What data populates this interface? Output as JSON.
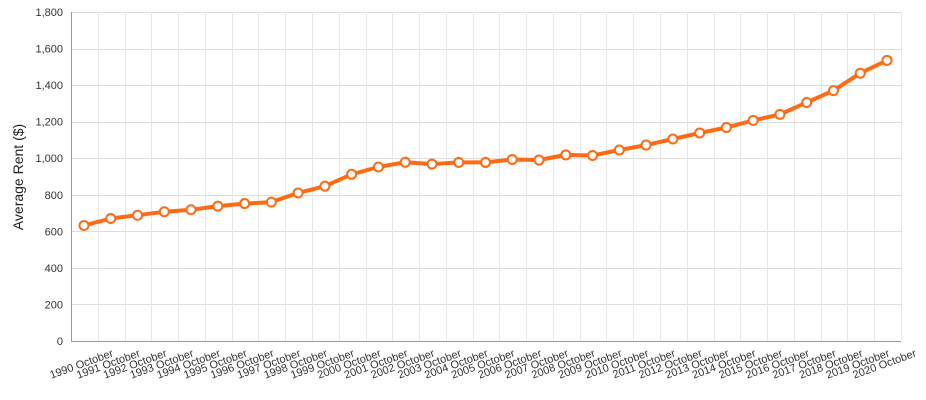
{
  "chart_data": {
    "type": "line",
    "title": "",
    "xlabel": "",
    "ylabel": "Average Rent ($)",
    "ylim": [
      0,
      1800
    ],
    "yticks": [
      0,
      200,
      400,
      600,
      800,
      1000,
      1200,
      1400,
      1600,
      1800
    ],
    "ytick_labels": [
      "0",
      "200",
      "400",
      "600",
      "800",
      "1,000",
      "1,200",
      "1,400",
      "1,600",
      "1,800"
    ],
    "grid": true,
    "legend": "none",
    "colors": {
      "line": "#ff6a13",
      "marker_fill": "#ffffff",
      "grid": "#dddddd"
    },
    "categories": [
      "1990 October",
      "1991 October",
      "1992 October",
      "1993 October",
      "1994 October",
      "1995 October",
      "1996 October",
      "1997 October",
      "1998 October",
      "1999 October",
      "2000 October",
      "2001 October",
      "2002 October",
      "2003 October",
      "2004 October",
      "2005 October",
      "2006 October",
      "2007 October",
      "2008 October",
      "2009 October",
      "2010 October",
      "2011 October",
      "2012 October",
      "2013 October",
      "2014 October",
      "2015 October",
      "2016 October",
      "2017 October",
      "2018 October",
      "2019 October",
      "2020 October"
    ],
    "values": [
      632,
      670,
      688,
      707,
      718,
      738,
      752,
      760,
      810,
      847,
      912,
      952,
      978,
      968,
      977,
      977,
      993,
      990,
      1018,
      1015,
      1045,
      1072,
      1105,
      1138,
      1168,
      1207,
      1240,
      1305,
      1370,
      1465,
      1535
    ]
  }
}
